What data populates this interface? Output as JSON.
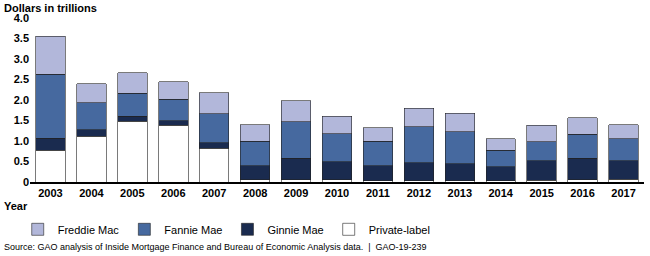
{
  "chart_data": {
    "type": "bar",
    "stacked": true,
    "y_label": "Dollars in trillions",
    "x_label": "Year",
    "annotations": [
      "Source: GAO analysis of Inside Mortgage Finance and Bureau of Economic Analysis data.  |  GAO-19-239"
    ],
    "categories": [
      "2003",
      "2004",
      "2005",
      "2006",
      "2007",
      "2008",
      "2009",
      "2010",
      "2011",
      "2012",
      "2013",
      "2014",
      "2015",
      "2016",
      "2017"
    ],
    "series": [
      {
        "name": "Freddie Mac",
        "color": "#b2b7da",
        "values": [
          0.92,
          0.47,
          0.49,
          0.42,
          0.51,
          0.4,
          0.51,
          0.42,
          0.33,
          0.45,
          0.45,
          0.27,
          0.4,
          0.4,
          0.35
        ]
      },
      {
        "name": "Fannie Mae",
        "color": "#46699f",
        "values": [
          1.56,
          0.65,
          0.57,
          0.52,
          0.71,
          0.6,
          0.89,
          0.68,
          0.59,
          0.88,
          0.78,
          0.41,
          0.46,
          0.59,
          0.53
        ]
      },
      {
        "name": "Ginnie Mae",
        "color": "#1a2b4f",
        "values": [
          0.29,
          0.16,
          0.12,
          0.12,
          0.14,
          0.35,
          0.53,
          0.45,
          0.37,
          0.44,
          0.42,
          0.34,
          0.48,
          0.53,
          0.45
        ]
      },
      {
        "name": "Private-label",
        "color": "#ffffff",
        "values": [
          0.78,
          1.12,
          1.48,
          1.38,
          0.82,
          0.05,
          0.05,
          0.05,
          0.03,
          0.03,
          0.03,
          0.03,
          0.04,
          0.05,
          0.07
        ]
      }
    ],
    "ylim": [
      0,
      4.0
    ],
    "yticks": [
      0,
      0.5,
      {
        "value": 1.0,
        "label": "1.0"
      },
      1.5,
      {
        "value": 2.0,
        "label": "2.0"
      },
      2.5,
      {
        "value": 3.0,
        "label": "3.0"
      },
      3.5,
      {
        "value": 4.0,
        "label": "4.0"
      }
    ],
    "grid": false,
    "legend": "bottom"
  }
}
